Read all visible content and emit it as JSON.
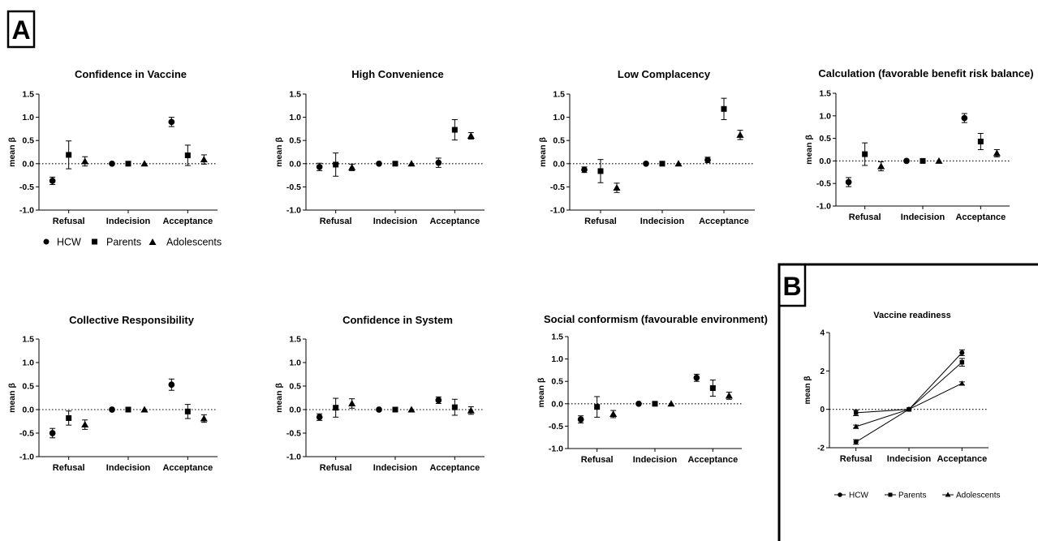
{
  "panel_a_label": "A",
  "panel_b_label": "B",
  "legend": {
    "series": [
      "HCW",
      "Parents",
      "Adolescents"
    ]
  },
  "chart_data": [
    {
      "type": "scatter",
      "title": "Confidence in Vaccine",
      "ylabel": "mean β",
      "xlabel": "",
      "categories": [
        "Refusal",
        "Indecision",
        "Acceptance"
      ],
      "ylim": [
        -1.0,
        1.5
      ],
      "yticks": [
        "1.5",
        "1.0",
        "0.5",
        "0.0",
        "-0.5",
        "-1.0"
      ],
      "reference_line": 0,
      "series": [
        {
          "name": "HCW",
          "marker": "circle",
          "values": [
            -0.37,
            0.0,
            0.9
          ],
          "err": [
            0.08,
            0.02,
            0.1
          ]
        },
        {
          "name": "Parents",
          "marker": "square",
          "values": [
            0.19,
            0.0,
            0.18
          ],
          "err": [
            0.3,
            0.02,
            0.22
          ]
        },
        {
          "name": "Adolescents",
          "marker": "triangle",
          "values": [
            0.05,
            0.0,
            0.09
          ],
          "err": [
            0.1,
            0.02,
            0.1
          ]
        }
      ]
    },
    {
      "type": "scatter",
      "title": "High Convenience",
      "ylabel": "mean β",
      "xlabel": "",
      "categories": [
        "Refusal",
        "Indecision",
        "Acceptance"
      ],
      "ylim": [
        -1.0,
        1.5
      ],
      "yticks": [
        "1.5",
        "1.0",
        "0.5",
        "0.0",
        "-0.5",
        "-1.0"
      ],
      "reference_line": 0,
      "series": [
        {
          "name": "HCW",
          "marker": "circle",
          "values": [
            -0.07,
            0.0,
            0.02
          ],
          "err": [
            0.08,
            0.02,
            0.1
          ]
        },
        {
          "name": "Parents",
          "marker": "square",
          "values": [
            -0.02,
            0.0,
            0.73
          ],
          "err": [
            0.25,
            0.02,
            0.22
          ]
        },
        {
          "name": "Adolescents",
          "marker": "triangle",
          "values": [
            -0.08,
            0.0,
            0.6
          ],
          "err": [
            0.07,
            0.02,
            0.07
          ]
        }
      ]
    },
    {
      "type": "scatter",
      "title": "Low Complacency",
      "ylabel": "mean β",
      "xlabel": "",
      "categories": [
        "Refusal",
        "Indecision",
        "Acceptance"
      ],
      "ylim": [
        -1.0,
        1.5
      ],
      "yticks": [
        "1.5",
        "1.0",
        "0.5",
        "0.0",
        "-0.5",
        "-1.0"
      ],
      "reference_line": 0,
      "series": [
        {
          "name": "HCW",
          "marker": "circle",
          "values": [
            -0.13,
            0.0,
            0.08
          ],
          "err": [
            0.06,
            0.02,
            0.06
          ]
        },
        {
          "name": "Parents",
          "marker": "square",
          "values": [
            -0.16,
            0.0,
            1.18
          ],
          "err": [
            0.25,
            0.02,
            0.23
          ]
        },
        {
          "name": "Adolescents",
          "marker": "triangle",
          "values": [
            -0.52,
            0.0,
            0.62
          ],
          "err": [
            0.1,
            0.02,
            0.1
          ]
        }
      ]
    },
    {
      "type": "scatter",
      "title": "Calculation (favorable benefit risk balance)",
      "ylabel": "mean β",
      "xlabel": "",
      "categories": [
        "Refusal",
        "Indecision",
        "Acceptance"
      ],
      "ylim": [
        -1.0,
        1.5
      ],
      "yticks": [
        "1.5",
        "1.0",
        "0.5",
        "0.0",
        "-0.5",
        "-1.0"
      ],
      "reference_line": 0,
      "series": [
        {
          "name": "HCW",
          "marker": "circle",
          "values": [
            -0.47,
            0.0,
            0.95
          ],
          "err": [
            0.1,
            0.02,
            0.1
          ]
        },
        {
          "name": "Parents",
          "marker": "square",
          "values": [
            0.15,
            0.0,
            0.43
          ],
          "err": [
            0.25,
            0.02,
            0.18
          ]
        },
        {
          "name": "Adolescents",
          "marker": "triangle",
          "values": [
            -0.12,
            0.0,
            0.17
          ],
          "err": [
            0.1,
            0.02,
            0.08
          ]
        }
      ]
    },
    {
      "type": "scatter",
      "title": "Collective Responsibility",
      "ylabel": "mean β",
      "xlabel": "",
      "categories": [
        "Refusal",
        "Indecision",
        "Acceptance"
      ],
      "ylim": [
        -1.0,
        1.5
      ],
      "yticks": [
        "1.5",
        "1.0",
        "0.5",
        "0.0",
        "-0.5",
        "-1.0"
      ],
      "reference_line": 0,
      "series": [
        {
          "name": "HCW",
          "marker": "circle",
          "values": [
            -0.5,
            0.0,
            0.53
          ],
          "err": [
            0.1,
            0.02,
            0.12
          ]
        },
        {
          "name": "Parents",
          "marker": "square",
          "values": [
            -0.18,
            0.0,
            -0.04
          ],
          "err": [
            0.15,
            0.02,
            0.15
          ]
        },
        {
          "name": "Adolescents",
          "marker": "triangle",
          "values": [
            -0.32,
            0.0,
            -0.19
          ],
          "err": [
            0.1,
            0.02,
            0.08
          ]
        }
      ]
    },
    {
      "type": "scatter",
      "title": "Confidence in System",
      "ylabel": "mean β",
      "xlabel": "",
      "categories": [
        "Refusal",
        "Indecision",
        "Acceptance"
      ],
      "ylim": [
        -1.0,
        1.5
      ],
      "yticks": [
        "1.5",
        "1.0",
        "0.5",
        "0.0",
        "-0.5",
        "-1.0"
      ],
      "reference_line": 0,
      "series": [
        {
          "name": "HCW",
          "marker": "circle",
          "values": [
            -0.16,
            0.0,
            0.2
          ],
          "err": [
            0.07,
            0.02,
            0.07
          ]
        },
        {
          "name": "Parents",
          "marker": "square",
          "values": [
            0.04,
            0.0,
            0.05
          ],
          "err": [
            0.2,
            0.02,
            0.17
          ]
        },
        {
          "name": "Adolescents",
          "marker": "triangle",
          "values": [
            0.13,
            0.0,
            -0.02
          ],
          "err": [
            0.1,
            0.02,
            0.08
          ]
        }
      ]
    },
    {
      "type": "scatter",
      "title": "Social conformism (favourable environment)",
      "ylabel": "mean β",
      "xlabel": "",
      "categories": [
        "Refusal",
        "Indecision",
        "Acceptance"
      ],
      "ylim": [
        -1.0,
        1.5
      ],
      "yticks": [
        "1.5",
        "1.0",
        "0.5",
        "0.0",
        "-0.5",
        "-1.0"
      ],
      "reference_line": 0,
      "series": [
        {
          "name": "HCW",
          "marker": "circle",
          "values": [
            -0.35,
            0.0,
            0.58
          ],
          "err": [
            0.08,
            0.02,
            0.08
          ]
        },
        {
          "name": "Parents",
          "marker": "square",
          "values": [
            -0.07,
            0.0,
            0.35
          ],
          "err": [
            0.23,
            0.02,
            0.18
          ]
        },
        {
          "name": "Adolescents",
          "marker": "triangle",
          "values": [
            -0.23,
            0.0,
            0.18
          ],
          "err": [
            0.08,
            0.02,
            0.08
          ]
        }
      ]
    },
    {
      "type": "line",
      "title": "Vaccine readiness",
      "ylabel": "mean β",
      "xlabel": "",
      "categories": [
        "Refusal",
        "Indecision",
        "Acceptance"
      ],
      "ylim": [
        -2,
        4
      ],
      "yticks": [
        "4",
        "2",
        "0",
        "-2"
      ],
      "reference_line": 0,
      "series": [
        {
          "name": "HCW",
          "marker": "circle",
          "values": [
            -1.7,
            0.0,
            2.95
          ],
          "err": [
            0.12,
            0.03,
            0.15
          ]
        },
        {
          "name": "Parents",
          "marker": "square",
          "values": [
            -0.18,
            0.0,
            2.45
          ],
          "err": [
            0.15,
            0.03,
            0.2
          ]
        },
        {
          "name": "Adolescents",
          "marker": "triangle",
          "values": [
            -0.9,
            0.0,
            1.35
          ],
          "err": [
            0.08,
            0.03,
            0.08
          ]
        }
      ]
    }
  ]
}
